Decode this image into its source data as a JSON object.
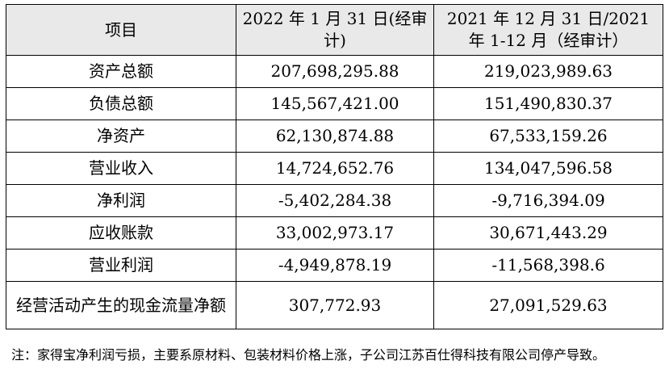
{
  "table": {
    "headers": [
      "项目",
      "2022 年 1 月 31 日(经审计)",
      "2021 年 12 月 31 日/2021 年 1-12 月（经审计）"
    ],
    "rows": [
      [
        "资产总额",
        "207,698,295.88",
        "219,023,989.63"
      ],
      [
        "负债总额",
        "145,567,421.00",
        "151,490,830.37"
      ],
      [
        "净资产",
        "62,130,874.88",
        "67,533,159.26"
      ],
      [
        "营业收入",
        "14,724,652.76",
        "134,047,596.58"
      ],
      [
        "净利润",
        "-5,402,284.38",
        "-9,716,394.09"
      ],
      [
        "应收账款",
        "33,002,973.17",
        "30,671,443.29"
      ],
      [
        "营业利润",
        "-4,949,878.19",
        "-11,568,398.6"
      ],
      [
        "经营活动产生的现金流量净额",
        "307,772.93",
        "27,091,529.63"
      ]
    ]
  },
  "note": "注：家得宝净利润亏损，主要系原材料、包装材料价格上涨，子公司江苏百仕得科技有限公司停产导致。"
}
